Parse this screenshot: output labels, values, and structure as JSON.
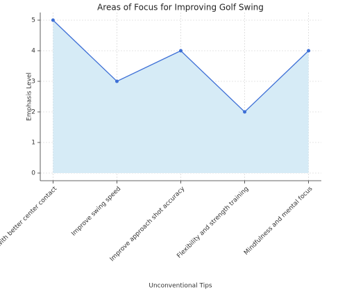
{
  "chart_data": {
    "type": "line",
    "title": "Areas of Focus for Improving Golf Swing",
    "x_label": "Unconventional Tips",
    "y_label": "Emphasis Level",
    "categories": [
      "Increase distance with better center contact",
      "Improve swing speed",
      "Improve approach shot accuracy",
      "Flexibility and strength training",
      "Mindfulness and mental focus"
    ],
    "values": [
      5,
      3,
      4,
      2,
      4
    ],
    "color": "#3d6fd6",
    "fill_color": "#d6ebf6",
    "area": true,
    "ylim": [
      -0.25,
      5.25
    ],
    "yticks": [
      0,
      1,
      2,
      3,
      4,
      5
    ],
    "grid": true
  }
}
